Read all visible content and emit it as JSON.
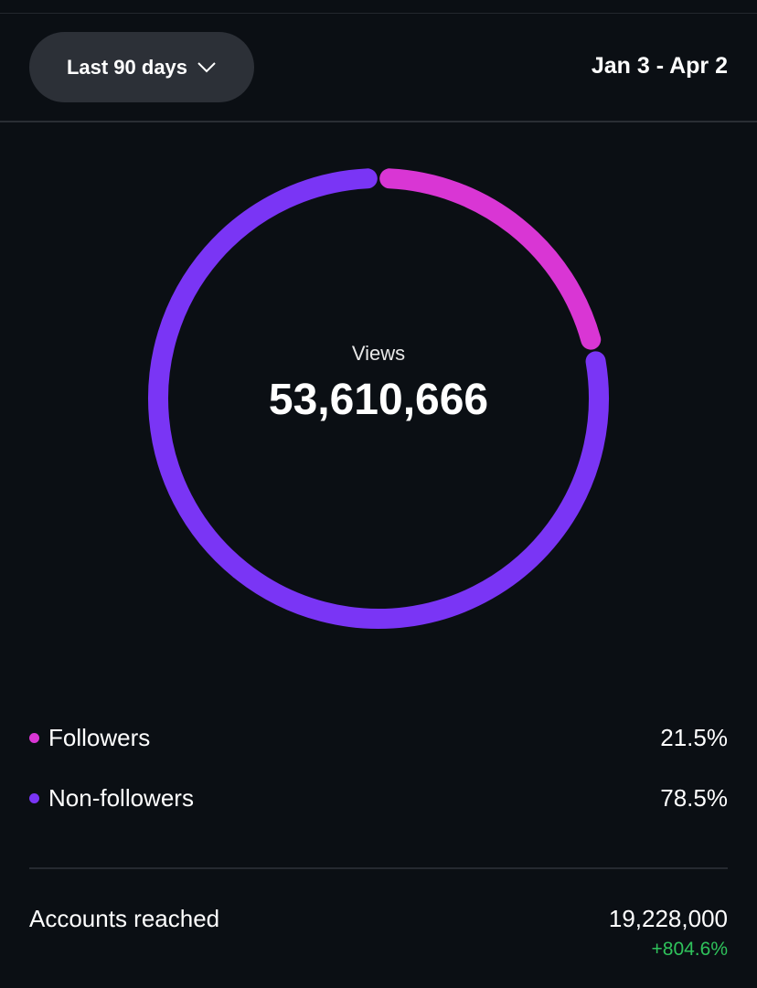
{
  "header": {
    "period_label": "Last 90 days",
    "date_range": "Jan 3 - Apr 2"
  },
  "summary": {
    "label": "Views",
    "value": "53,610,666"
  },
  "legend": [
    {
      "label": "Followers",
      "percent": "21.5%",
      "color": "#d936d4"
    },
    {
      "label": "Non-followers",
      "percent": "78.5%",
      "color": "#7a35f5"
    }
  ],
  "metrics": {
    "accounts_reached_label": "Accounts reached",
    "accounts_reached_value": "19,228,000",
    "accounts_reached_change": "+804.6%",
    "change_color": "#2fc25b"
  },
  "chart_data": {
    "type": "pie",
    "categories": [
      "Followers",
      "Non-followers"
    ],
    "values": [
      21.5,
      78.5
    ],
    "colors": [
      "#d936d4",
      "#7a35f5"
    ]
  }
}
